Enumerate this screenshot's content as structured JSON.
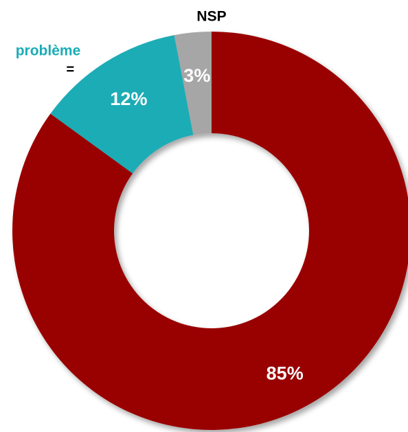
{
  "chart_data": {
    "type": "pie",
    "donut": true,
    "categories": [
      null,
      "problème",
      "NSP"
    ],
    "values": [
      85,
      12,
      3
    ],
    "value_labels": [
      "85%",
      "12%",
      "3%"
    ],
    "colors": [
      "#990000",
      "#1aacb6",
      "#a6a6a6"
    ],
    "annotation": "="
  }
}
